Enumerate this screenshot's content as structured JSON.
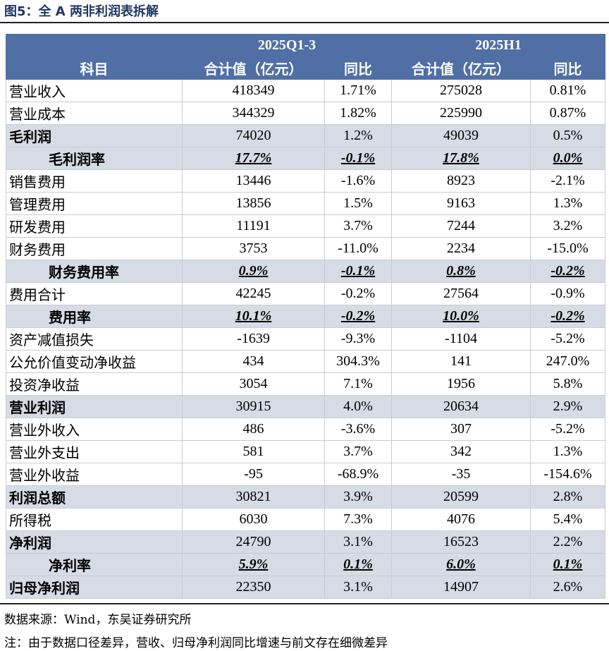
{
  "header": {
    "title": "图5：全 A 两非利润表拆解"
  },
  "table": {
    "periods": [
      "2025Q1-3",
      "2025H1"
    ],
    "columns": [
      "科目",
      "合计值（亿元）",
      "同比",
      "合计值（亿元）",
      "同比"
    ],
    "rows": [
      [
        "营业收入",
        "418349",
        "1.71%",
        "275028",
        "0.81%"
      ],
      [
        "营业成本",
        "344329",
        "1.82%",
        "225990",
        "0.87%"
      ],
      [
        "毛利润",
        "74020",
        "1.2%",
        "49039",
        "0.5%"
      ],
      [
        "毛利润率",
        "17.7%",
        "-0.1%",
        "17.8%",
        "0.0%"
      ],
      [
        "销售费用",
        "13446",
        "-1.6%",
        "8923",
        "-2.1%"
      ],
      [
        "管理费用",
        "13856",
        "1.5%",
        "9163",
        "1.3%"
      ],
      [
        "研发费用",
        "11191",
        "3.7%",
        "7244",
        "3.2%"
      ],
      [
        "财务费用",
        "3753",
        "-11.0%",
        "2234",
        "-15.0%"
      ],
      [
        "财务费用率",
        "0.9%",
        "-0.1%",
        "0.8%",
        "-0.2%"
      ],
      [
        "费用合计",
        "42245",
        "-0.2%",
        "27564",
        "-0.9%"
      ],
      [
        "费用率",
        "10.1%",
        "-0.2%",
        "10.0%",
        "-0.2%"
      ],
      [
        "资产减值损失",
        "-1639",
        "-9.3%",
        "-1104",
        "-5.2%"
      ],
      [
        "公允价值变动净收益",
        "434",
        "304.3%",
        "141",
        "247.0%"
      ],
      [
        "投资净收益",
        "3054",
        "7.1%",
        "1956",
        "5.8%"
      ],
      [
        "营业利润",
        "30915",
        "4.0%",
        "20634",
        "2.9%"
      ],
      [
        "营业外收入",
        "486",
        "-3.6%",
        "307",
        "-5.2%"
      ],
      [
        "营业外支出",
        "581",
        "3.7%",
        "342",
        "1.3%"
      ],
      [
        "营业外收益",
        "-95",
        "-68.9%",
        "-35",
        "-154.6%"
      ],
      [
        "利润总额",
        "30821",
        "3.9%",
        "20599",
        "2.8%"
      ],
      [
        "所得税",
        "6030",
        "7.3%",
        "4076",
        "5.4%"
      ],
      [
        "净利润",
        "24790",
        "3.1%",
        "16523",
        "2.2%"
      ],
      [
        "净利率",
        "5.9%",
        "0.1%",
        "6.0%",
        "0.1%"
      ],
      [
        "归母净利润",
        "22350",
        "3.1%",
        "14907",
        "2.6%"
      ]
    ]
  },
  "footer": {
    "source": "数据来源：Wind，东吴证券研究所",
    "note": "注：由于数据口径差异，营收、归母净利润同比增速与前文存在细微差异"
  }
}
